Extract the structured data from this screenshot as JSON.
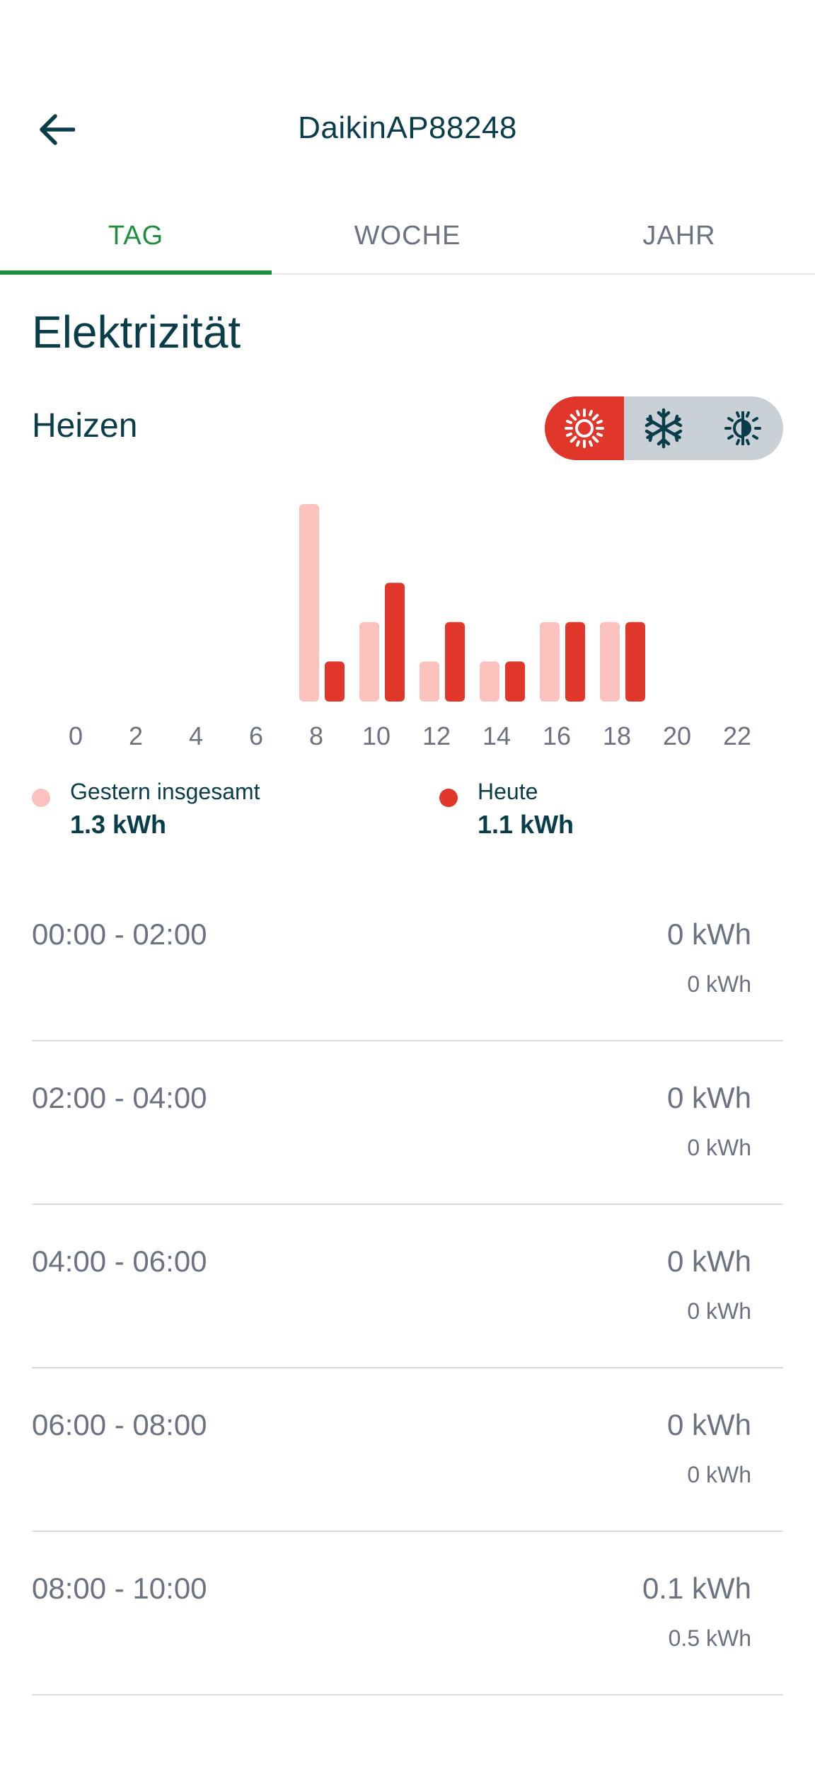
{
  "header": {
    "title": "DaikinAP88248",
    "back_icon": "arrow-left-icon"
  },
  "tabs": [
    {
      "label": "TAG",
      "active": true
    },
    {
      "label": "WOCHE",
      "active": false
    },
    {
      "label": "JAHR",
      "active": false
    }
  ],
  "section": {
    "title": "Elektrizität",
    "mode_label": "Heizen",
    "modes": [
      {
        "icon": "sun-icon",
        "active": true
      },
      {
        "icon": "snowflake-icon",
        "active": false
      },
      {
        "icon": "auto-mode-icon",
        "active": false
      }
    ]
  },
  "colors": {
    "accent_green": "#1e8f3c",
    "today_red": "#e0372a",
    "yesterday_pink": "#fbc1bc",
    "text_dark": "#0a3d4a"
  },
  "chart_data": {
    "type": "bar",
    "categories": [
      "0",
      "2",
      "4",
      "6",
      "8",
      "10",
      "12",
      "14",
      "16",
      "18",
      "20",
      "22"
    ],
    "series": [
      {
        "name": "Gestern insgesamt",
        "values": [
          0,
          0,
          0,
          0,
          0.5,
          0.2,
          0.1,
          0.1,
          0.2,
          0.2,
          0,
          0
        ]
      },
      {
        "name": "Heute",
        "values": [
          0,
          0,
          0,
          0,
          0.1,
          0.3,
          0.2,
          0.1,
          0.2,
          0.2,
          0,
          0
        ]
      }
    ],
    "ylim": [
      0,
      0.5
    ],
    "grid": false
  },
  "legend": [
    {
      "label": "Gestern insgesamt",
      "value": "1.3 kWh"
    },
    {
      "label": "Heute",
      "value": "1.1 kWh"
    }
  ],
  "rows": [
    {
      "time": "00:00 - 02:00",
      "today": "0 kWh",
      "yesterday": "0 kWh"
    },
    {
      "time": "02:00 - 04:00",
      "today": "0 kWh",
      "yesterday": "0 kWh"
    },
    {
      "time": "04:00 - 06:00",
      "today": "0 kWh",
      "yesterday": "0 kWh"
    },
    {
      "time": "06:00 - 08:00",
      "today": "0 kWh",
      "yesterday": "0 kWh"
    },
    {
      "time": "08:00 - 10:00",
      "today": "0.1 kWh",
      "yesterday": "0.5 kWh"
    }
  ]
}
